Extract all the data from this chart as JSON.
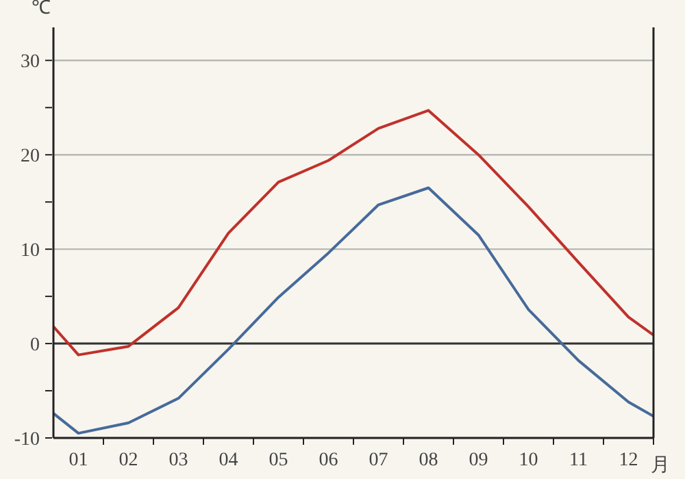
{
  "chart_data": {
    "type": "line",
    "xlabel": "月",
    "ylabel": "℃",
    "x": [
      0.5,
      1,
      2,
      3,
      4,
      5,
      6,
      7,
      8,
      9,
      10,
      11,
      12,
      12.5
    ],
    "xlim": [
      0.5,
      12.5
    ],
    "xticks": [
      {
        "value": 1,
        "label": "01"
      },
      {
        "value": 1.5,
        "label": null
      },
      {
        "value": 2,
        "label": "02"
      },
      {
        "value": 2.5,
        "label": null
      },
      {
        "value": 3,
        "label": "03"
      },
      {
        "value": 3.5,
        "label": null
      },
      {
        "value": 4,
        "label": "04"
      },
      {
        "value": 4.5,
        "label": null
      },
      {
        "value": 5,
        "label": "05"
      },
      {
        "value": 5.5,
        "label": null
      },
      {
        "value": 6,
        "label": "06"
      },
      {
        "value": 6.5,
        "label": null
      },
      {
        "value": 7,
        "label": "07"
      },
      {
        "value": 7.5,
        "label": null
      },
      {
        "value": 8,
        "label": "08"
      },
      {
        "value": 8.5,
        "label": null
      },
      {
        "value": 9,
        "label": "09"
      },
      {
        "value": 9.5,
        "label": null
      },
      {
        "value": 10,
        "label": "10"
      },
      {
        "value": 10.5,
        "label": null
      },
      {
        "value": 11,
        "label": "11"
      },
      {
        "value": 11.5,
        "label": null
      },
      {
        "value": 12,
        "label": "12"
      },
      {
        "value": 12.5,
        "label": null
      }
    ],
    "ylim": [
      -10,
      33.5
    ],
    "yticks": [
      -10,
      {
        "value": -5,
        "label": null
      },
      0,
      {
        "value": 5,
        "label": null
      },
      10,
      {
        "value": 15,
        "label": null
      },
      20,
      {
        "value": 25,
        "label": null
      },
      30
    ],
    "grid": "y",
    "marker": "none",
    "line_style": "solid",
    "ref_lines": [
      {
        "axis": "y",
        "value": 0,
        "color": "#333333"
      }
    ],
    "series": [
      {
        "color": "#c0312b",
        "values": [
          1.8,
          -1.2,
          -0.3,
          3.8,
          11.7,
          17.1,
          19.4,
          22.8,
          24.7,
          20,
          14.5,
          8.6,
          2.8,
          0.9
        ]
      },
      {
        "color": "#466a9a",
        "values": [
          -7.4,
          -9.5,
          -8.4,
          -5.8,
          -0.6,
          4.9,
          9.6,
          14.7,
          16.5,
          11.5,
          3.6,
          -1.8,
          -6.2,
          -7.7
        ]
      }
    ]
  }
}
